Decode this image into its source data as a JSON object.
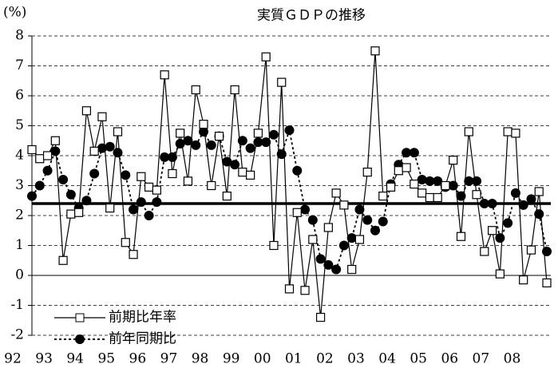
{
  "chart_data": {
    "type": "line",
    "title": "実質ＧＤＰの推移",
    "y_unit": "(%)",
    "categories": [
      "92",
      null,
      null,
      null,
      "93",
      null,
      null,
      null,
      "94",
      null,
      null,
      null,
      "95",
      null,
      null,
      null,
      "96",
      null,
      null,
      null,
      "97",
      null,
      null,
      null,
      "98",
      null,
      null,
      null,
      "99",
      null,
      null,
      null,
      "00",
      null,
      null,
      null,
      "01",
      null,
      null,
      null,
      "02",
      null,
      null,
      null,
      "03",
      null,
      null,
      null,
      "04",
      null,
      null,
      null,
      "05",
      null,
      null,
      null,
      "06",
      null,
      null,
      null,
      "07",
      null,
      null,
      null,
      "08",
      null,
      null
    ],
    "series": [
      {
        "name": "前期比年率",
        "color": "#000000",
        "marker": "square",
        "dash": false,
        "values": [
          4.2,
          3.9,
          4.0,
          4.5,
          0.5,
          2.05,
          2.1,
          5.5,
          4.15,
          5.3,
          2.25,
          4.8,
          1.1,
          0.7,
          3.3,
          2.95,
          2.85,
          6.7,
          3.4,
          4.75,
          3.15,
          6.2,
          5.05,
          3.0,
          4.65,
          2.65,
          6.2,
          3.45,
          3.35,
          4.75,
          7.3,
          1.0,
          6.45,
          -0.45,
          2.1,
          -0.5,
          1.2,
          -1.4,
          1.6,
          2.75,
          2.35,
          0.2,
          1.2,
          3.45,
          7.5,
          2.65,
          2.95,
          3.5,
          3.6,
          3.05,
          2.75,
          2.6,
          2.6,
          3.0,
          3.85,
          1.3,
          4.8,
          2.7,
          0.8,
          1.5,
          0.05,
          4.8,
          4.75,
          -0.15,
          0.85,
          2.8,
          -0.25
        ]
      },
      {
        "name": "前年同期比",
        "color": "#000000",
        "marker": "circle",
        "dash": true,
        "values": [
          2.65,
          3.0,
          3.5,
          4.15,
          3.2,
          2.7,
          2.25,
          2.5,
          3.4,
          4.25,
          4.3,
          4.1,
          3.35,
          2.2,
          2.45,
          2.0,
          2.45,
          3.95,
          3.95,
          4.4,
          4.5,
          4.35,
          4.8,
          4.35,
          4.65,
          3.8,
          3.7,
          4.5,
          4.25,
          4.45,
          4.45,
          4.7,
          4.05,
          4.85,
          3.5,
          2.2,
          1.85,
          0.55,
          0.35,
          0.2,
          1.0,
          1.25,
          2.2,
          1.85,
          1.5,
          1.8,
          3.05,
          3.7,
          4.1,
          4.1,
          3.2,
          3.15,
          3.15,
          2.95,
          3.0,
          2.65,
          3.15,
          3.15,
          2.4,
          2.4,
          1.25,
          1.75,
          2.75,
          2.35,
          2.55,
          2.05,
          0.8
        ]
      }
    ],
    "ylim": [
      -2,
      8
    ],
    "yticks": [
      -2,
      -1,
      0,
      1,
      2,
      3,
      4,
      5,
      6,
      7,
      8
    ],
    "grid": true,
    "reference_line": 2.4,
    "legend": "lower left"
  }
}
